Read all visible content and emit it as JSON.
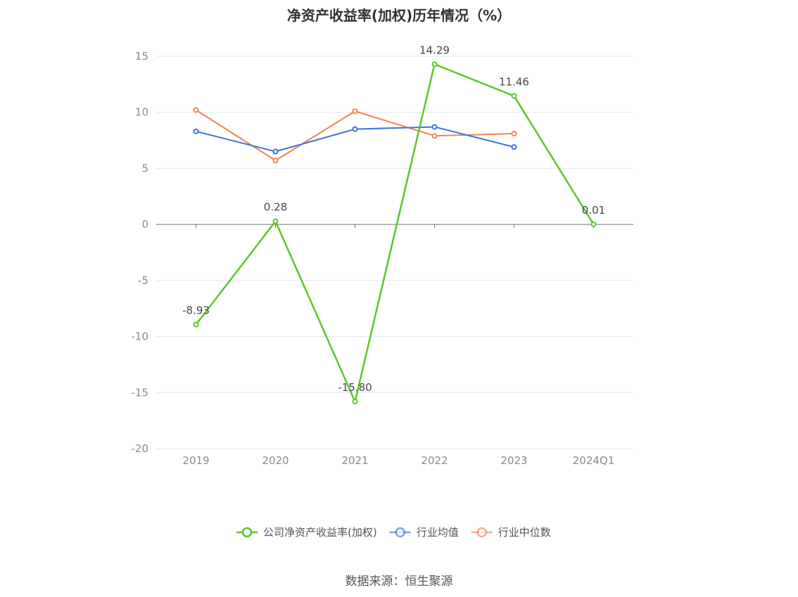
{
  "title": "净资产收益率(加权)历年情况（%）",
  "source": "数据来源：恒生聚源",
  "chart_data": {
    "type": "line",
    "title": "净资产收益率(加权)历年情况（%）",
    "categories": [
      "2019",
      "2020",
      "2021",
      "2022",
      "2023",
      "2024Q1"
    ],
    "ylim": [
      -20,
      15
    ],
    "yticks": [
      15,
      10,
      5,
      0,
      -5,
      -10,
      -15,
      -20
    ],
    "grid": true,
    "legend_position": "bottom",
    "series": [
      {
        "name": "公司净资产收益率(加权)",
        "color": "#5cc72a",
        "values": [
          -8.93,
          0.28,
          -15.8,
          14.29,
          11.46,
          0.01
        ],
        "labels": [
          "-8.93",
          "0.28",
          "-15.80",
          "14.29",
          "11.46",
          "0.01"
        ]
      },
      {
        "name": "行业均值",
        "color": "#3d73db",
        "values": [
          8.3,
          6.5,
          8.5,
          8.7,
          6.9,
          null
        ]
      },
      {
        "name": "行业中位数",
        "color": "#f08453",
        "values": [
          10.2,
          5.7,
          10.1,
          7.9,
          8.1,
          null
        ]
      }
    ]
  }
}
